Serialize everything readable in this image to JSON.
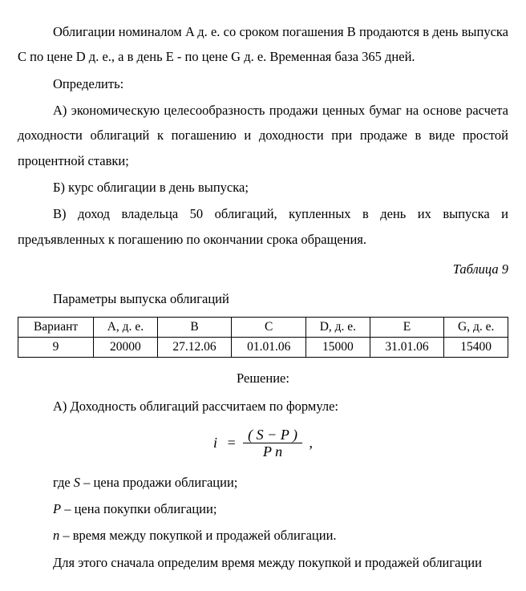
{
  "p1": "Облигации номиналом A д. е. со сроком погашения B продаются в день выпуска C по цене D д. е., а в день E - по цене G д. е. Временная база 365 дней.",
  "p2": "Определить:",
  "p3": "А) экономическую целесообразность продажи ценных бумаг на основе расчета доходности облигаций к погашению и доходности при продаже в виде простой процентной ставки;",
  "p4": "Б) курс облигации в день выпуска;",
  "p5": "В) доход владельца 50 облигаций, купленных в день их выпуска и предъявленных к погашению по окончании срока обращения.",
  "table_ref": "Таблица 9",
  "table_title": "Параметры выпуска облигаций",
  "table": {
    "columns": [
      "Вариант",
      "A, д. е.",
      "B",
      "C",
      "D, д. е.",
      "E",
      "G, д. е."
    ],
    "row": [
      "9",
      "20000",
      "27.12.06",
      "01.01.06",
      "15000",
      "31.01.06",
      "15400"
    ],
    "border_color": "#000000",
    "font_size": 15.5
  },
  "solution_label": "Решение:",
  "sA": "А) Доходность облигаций рассчитаем по формуле:",
  "formula": {
    "lhs": "i",
    "num": "( S − P )",
    "den": "P n",
    "tail": ","
  },
  "def_S_pre": "где ",
  "def_S_var": "S",
  "def_S_post": " – цена продажи облигации;",
  "def_P_var": "P",
  "def_P_post": " – цена покупки облигации;",
  "def_n_var": "n",
  "def_n_post": " – время между покупкой и продажей облигации.",
  "p_last": "Для этого сначала определим время между покупкой и продажей облигации",
  "colors": {
    "text": "#000000",
    "background": "#ffffff"
  },
  "typography": {
    "font_family": "Times New Roman",
    "body_fontsize": 16.5,
    "line_height": 1.9
  }
}
